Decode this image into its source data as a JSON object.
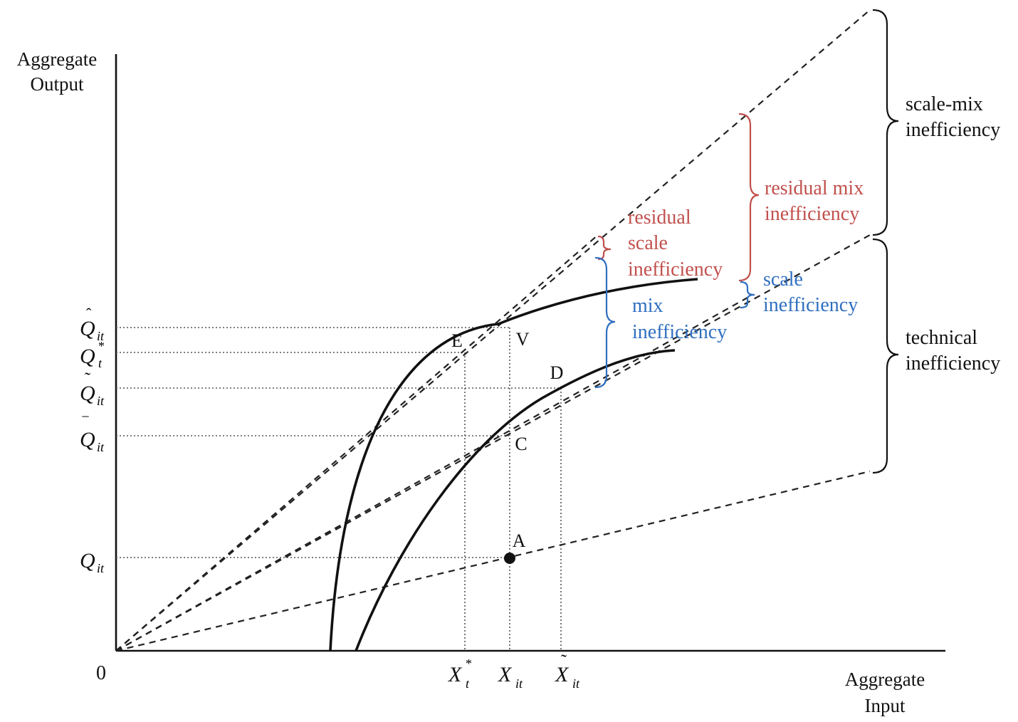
{
  "axes": {
    "y_label_line1": "Aggregate",
    "y_label_line2": "Output",
    "x_label_line1": "Aggregate",
    "x_label_line2": "Input",
    "origin": "0"
  },
  "points": {
    "E": "E",
    "V": "V",
    "D": "D",
    "C": "C",
    "A": "A"
  },
  "y_ticks": {
    "q_hat": {
      "base": "Q",
      "sub": "it",
      "accent": "ˆ"
    },
    "q_star": {
      "base": "Q",
      "sub": "t",
      "sup": "*"
    },
    "q_tilde": {
      "base": "Q",
      "sub": "it",
      "accent": "˜"
    },
    "q_bar": {
      "base": "Q",
      "sub": "it",
      "accent": "‾"
    },
    "q": {
      "base": "Q",
      "sub": "it"
    }
  },
  "x_ticks": {
    "x_star": {
      "base": "X",
      "sub": "t",
      "sup": "*"
    },
    "x": {
      "base": "X",
      "sub": "it"
    },
    "x_tilde": {
      "base": "X",
      "sub": "it",
      "accent": "˜"
    }
  },
  "braces": {
    "scale_mix": {
      "line1": "scale-mix",
      "line2": "inefficiency",
      "color": "#111111"
    },
    "technical": {
      "line1": "technical",
      "line2": "inefficiency",
      "color": "#111111"
    },
    "residual_mix": {
      "line1": "residual mix",
      "line2": "inefficiency",
      "color": "#c0504d"
    },
    "residual_scale": {
      "line1": "residual",
      "line2": "scale",
      "line3": "inefficiency",
      "color": "#c0504d"
    },
    "scale": {
      "line1": "scale",
      "line2": "inefficiency",
      "color": "#2f6fc0"
    },
    "mix": {
      "line1": "mix",
      "line2": "inefficiency",
      "color": "#2f6fc0"
    }
  }
}
